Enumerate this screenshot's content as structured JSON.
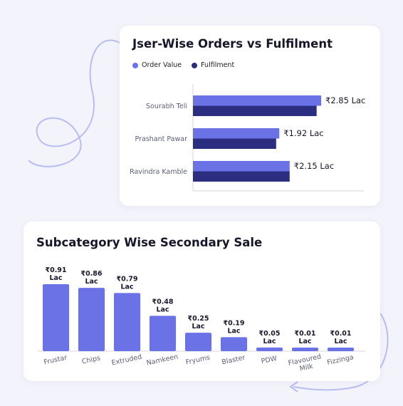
{
  "colors": {
    "order_value": "#6b72e6",
    "fulfilment": "#2b2e80",
    "bar": "#6b72e6",
    "deco": "#b9bdf2"
  },
  "chart_data": [
    {
      "type": "bar",
      "orientation": "horizontal",
      "title": "Jser-Wise Orders vs Fulfilment",
      "legend_position": "top-left",
      "categories": [
        "Sourabh Teli",
        "Prashant Pawar",
        "Ravindra Kamble"
      ],
      "series": [
        {
          "name": "Order Value",
          "values": [
            2.85,
            1.92,
            2.15
          ]
        },
        {
          "name": "Fulfilment",
          "values": [
            2.75,
            1.85,
            2.15
          ]
        }
      ],
      "value_labels": [
        "₹2.85 Lac",
        "₹1.92 Lac",
        "₹2.15 Lac"
      ],
      "xlim": [
        0,
        3.8
      ]
    },
    {
      "type": "bar",
      "title": "Subcategory Wise Secondary Sale",
      "categories": [
        "Frustar",
        "Chips",
        "Extruded",
        "Namkeen",
        "Fryums",
        "Blaster",
        "PDW",
        "Flavoured Milk",
        "Fizzinga"
      ],
      "values": [
        0.91,
        0.86,
        0.79,
        0.48,
        0.25,
        0.19,
        0.05,
        0.01,
        0.01
      ],
      "value_labels": [
        "₹0.91 Lac",
        "₹0.86 Lac",
        "₹0.79 Lac",
        "₹0.48 Lac",
        "₹0.25 Lac",
        "₹0.19 Lac",
        "₹0.05 Lac",
        "₹0.01 Lac",
        "₹0.01 Lac"
      ],
      "ylim": [
        0,
        0.91
      ]
    }
  ]
}
